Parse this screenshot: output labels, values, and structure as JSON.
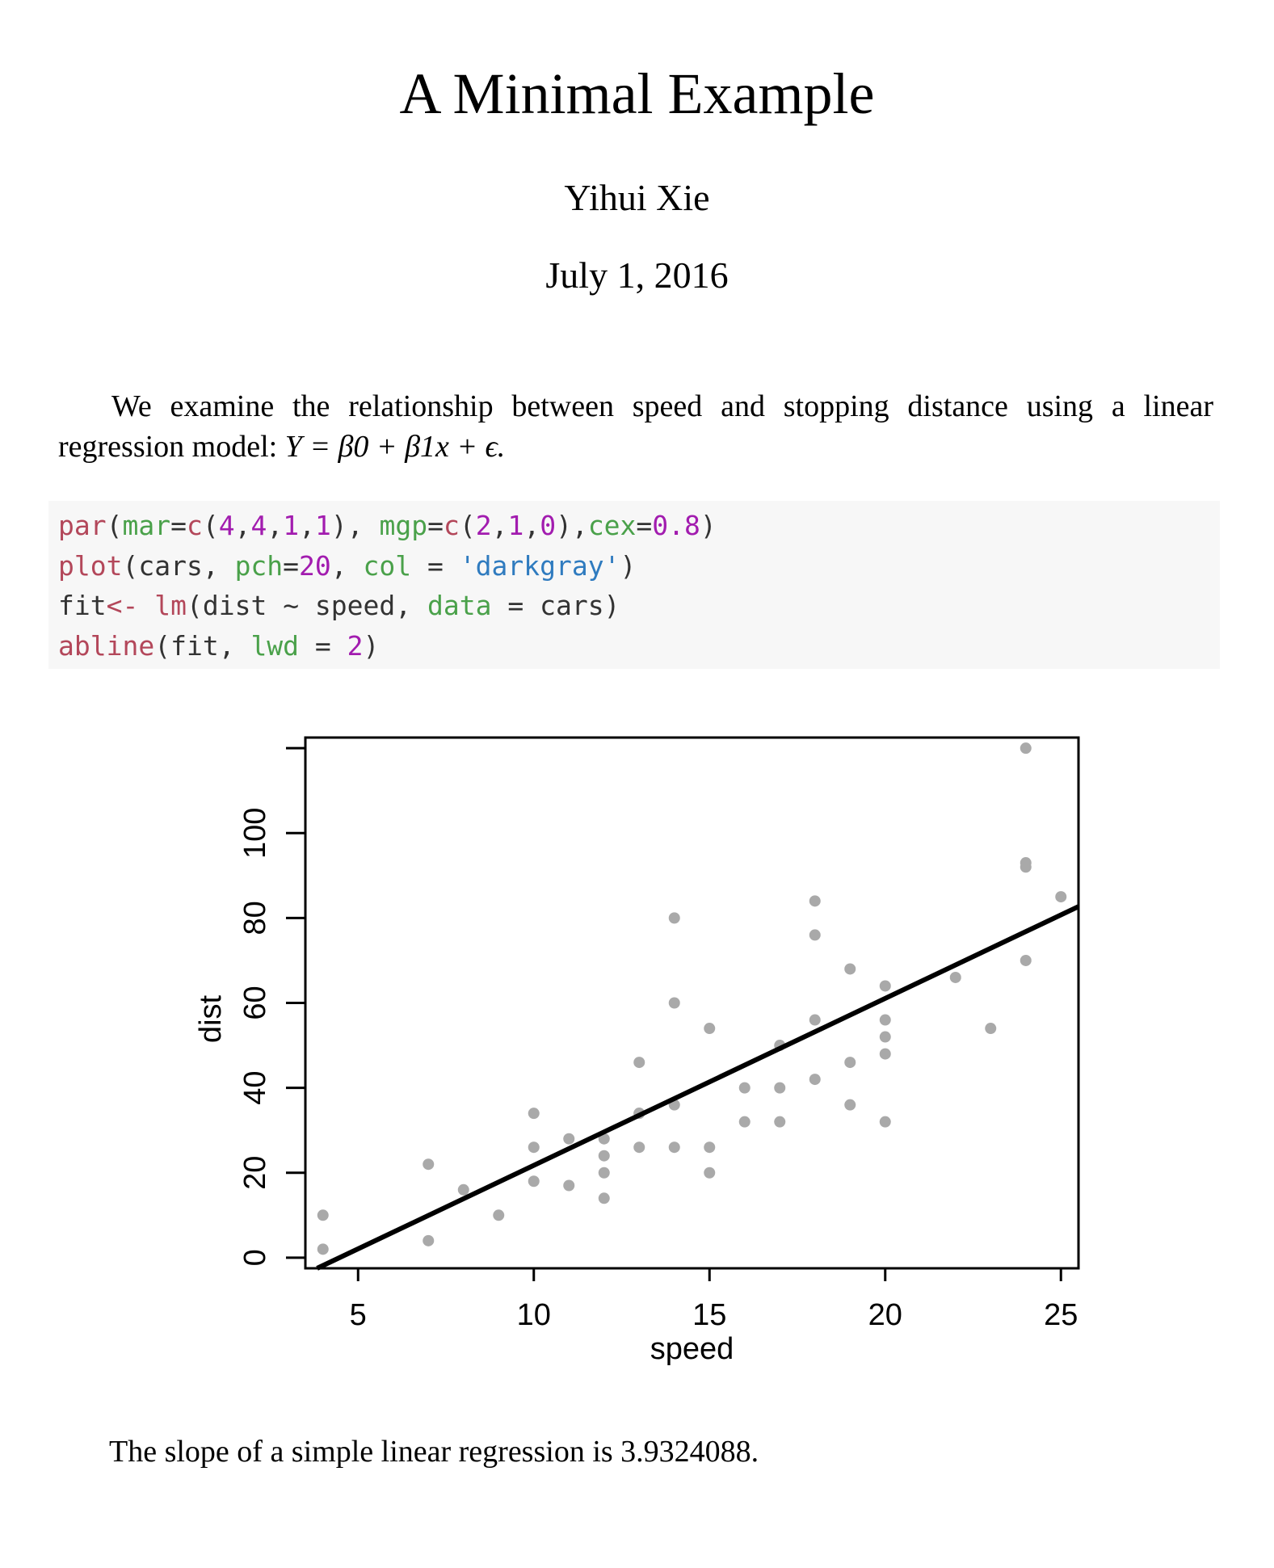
{
  "title": "A Minimal Example",
  "author": "Yihui Xie",
  "date": "July 1, 2016",
  "paragraph": {
    "text": "We examine the relationship between speed and stopping distance using a linear regression model:",
    "math": "Y = β0 + β1x + ϵ."
  },
  "code_lines": [
    [
      [
        "fn",
        "par"
      ],
      [
        "p",
        "("
      ],
      [
        "arg",
        "mar"
      ],
      [
        "p",
        "="
      ],
      [
        "fn",
        "c"
      ],
      [
        "p",
        "("
      ],
      [
        "num",
        "4"
      ],
      [
        "p",
        ","
      ],
      [
        "num",
        "4"
      ],
      [
        "p",
        ","
      ],
      [
        "num",
        "1"
      ],
      [
        "p",
        ","
      ],
      [
        "num",
        "1"
      ],
      [
        "p",
        "), "
      ],
      [
        "arg",
        "mgp"
      ],
      [
        "p",
        "="
      ],
      [
        "fn",
        "c"
      ],
      [
        "p",
        "("
      ],
      [
        "num",
        "2"
      ],
      [
        "p",
        ","
      ],
      [
        "num",
        "1"
      ],
      [
        "p",
        ","
      ],
      [
        "num",
        "0"
      ],
      [
        "p",
        "),"
      ],
      [
        "arg",
        "cex"
      ],
      [
        "p",
        "="
      ],
      [
        "num",
        "0.8"
      ],
      [
        "p",
        ")"
      ]
    ],
    [
      [
        "fn",
        "plot"
      ],
      [
        "p",
        "(cars, "
      ],
      [
        "arg",
        "pch"
      ],
      [
        "p",
        "="
      ],
      [
        "num",
        "20"
      ],
      [
        "p",
        ", "
      ],
      [
        "arg",
        "col"
      ],
      [
        "p",
        " = "
      ],
      [
        "str",
        "'darkgray'"
      ],
      [
        "p",
        ")"
      ]
    ],
    [
      [
        "p",
        "fit"
      ],
      [
        "fn",
        "<-"
      ],
      [
        "p",
        " "
      ],
      [
        "fn",
        "lm"
      ],
      [
        "p",
        "(dist ~ speed, "
      ],
      [
        "arg",
        "data"
      ],
      [
        "p",
        " = cars)"
      ]
    ],
    [
      [
        "fn",
        "abline"
      ],
      [
        "p",
        "(fit, "
      ],
      [
        "arg",
        "lwd"
      ],
      [
        "p",
        " = "
      ],
      [
        "num",
        "2"
      ],
      [
        "p",
        ")"
      ]
    ]
  ],
  "chart_data": {
    "type": "scatter",
    "xlabel": "speed",
    "ylabel": "dist",
    "xlim": [
      3.5,
      25.5
    ],
    "ylim": [
      -2.5,
      122.5
    ],
    "xticks": [
      5,
      10,
      15,
      20,
      25
    ],
    "yticks": [
      0,
      20,
      40,
      60,
      80,
      100,
      120
    ],
    "ytick_labels": [
      "0",
      "20",
      "40",
      "60",
      "80",
      "100",
      ""
    ],
    "point_color": "#a9a9a9",
    "grid": false,
    "points": [
      [
        4,
        2
      ],
      [
        4,
        10
      ],
      [
        7,
        4
      ],
      [
        7,
        22
      ],
      [
        8,
        16
      ],
      [
        9,
        10
      ],
      [
        10,
        18
      ],
      [
        10,
        26
      ],
      [
        10,
        34
      ],
      [
        11,
        17
      ],
      [
        11,
        28
      ],
      [
        12,
        14
      ],
      [
        12,
        20
      ],
      [
        12,
        24
      ],
      [
        12,
        28
      ],
      [
        13,
        26
      ],
      [
        13,
        34
      ],
      [
        13,
        34
      ],
      [
        13,
        46
      ],
      [
        14,
        26
      ],
      [
        14,
        36
      ],
      [
        14,
        60
      ],
      [
        14,
        80
      ],
      [
        15,
        20
      ],
      [
        15,
        26
      ],
      [
        15,
        54
      ],
      [
        16,
        32
      ],
      [
        16,
        40
      ],
      [
        17,
        32
      ],
      [
        17,
        40
      ],
      [
        17,
        50
      ],
      [
        18,
        42
      ],
      [
        18,
        56
      ],
      [
        18,
        76
      ],
      [
        18,
        84
      ],
      [
        19,
        36
      ],
      [
        19,
        46
      ],
      [
        19,
        68
      ],
      [
        20,
        32
      ],
      [
        20,
        48
      ],
      [
        20,
        52
      ],
      [
        20,
        56
      ],
      [
        20,
        64
      ],
      [
        22,
        66
      ],
      [
        23,
        54
      ],
      [
        24,
        70
      ],
      [
        24,
        92
      ],
      [
        24,
        93
      ],
      [
        24,
        120
      ],
      [
        25,
        85
      ]
    ],
    "fit_line": {
      "intercept": -17.5791,
      "slope": 3.9324088
    }
  },
  "caption": "The slope of a simple linear regression is 3.9324088."
}
